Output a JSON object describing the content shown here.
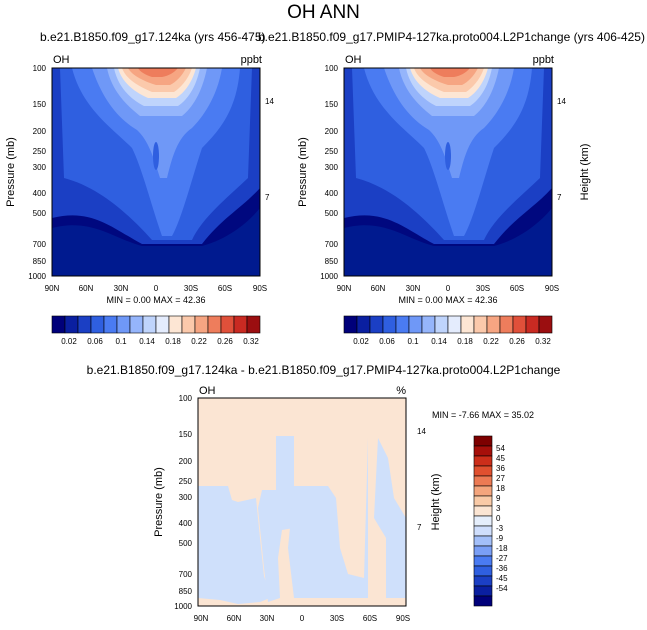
{
  "figure": {
    "title": "OH ANN"
  },
  "colors": {
    "oh_levels": [
      "#00007a",
      "#0a1fa0",
      "#1b3fc4",
      "#2f5fe0",
      "#4a7bf2",
      "#6f98f7",
      "#95b5fb",
      "#bfd4fc",
      "#e4ecfd",
      "#fde6d4",
      "#fbc9ab",
      "#f6a582",
      "#ee7d5c",
      "#e0503a",
      "#c92a22",
      "#9b0e10"
    ],
    "diff_levels": [
      "#00007a",
      "#0a1fa0",
      "#1b3fc4",
      "#2f5fe0",
      "#4a7bf2",
      "#7a9ff6",
      "#a3bff9",
      "#cfdefc",
      "#e5eefb",
      "#fbe5d3",
      "#f9caa7",
      "#f4a57d",
      "#ec7a54",
      "#e0502f",
      "#cc2e1a",
      "#a60f0a",
      "#7d0000"
    ]
  },
  "chart_data": [
    {
      "type": "contour",
      "title": "b.e21.B1850.f09_g17.124ka (yrs 456-475)",
      "left_label": "OH",
      "right_label": "ppbt",
      "xlabel": "",
      "ylabel": "Pressure (mb)",
      "y2label": "",
      "x_ticks": [
        "90N",
        "60N",
        "30N",
        "0",
        "30S",
        "60S",
        "90S"
      ],
      "y_ticks": [
        "100",
        "150",
        "200",
        "250",
        "300",
        "400",
        "500",
        "700",
        "850",
        "1000"
      ],
      "y2_ticks": [
        "14",
        "7"
      ],
      "ylim": [
        1000,
        100
      ],
      "min_text": "MIN =  0.00  MAX = 42.36",
      "colorbar_labels": [
        "0.02",
        "0.06",
        "0.1",
        "0.14",
        "0.18",
        "0.22",
        "0.26",
        "0.32"
      ]
    },
    {
      "type": "contour",
      "title": "b.e21.B1850.f09_g17.PMIP4-127ka.proto004.L2P1change (yrs 406-425)",
      "left_label": "OH",
      "right_label": "ppbt",
      "xlabel": "",
      "ylabel": "Pressure (mb)",
      "y2label": "Height (km)",
      "x_ticks": [
        "90N",
        "60N",
        "30N",
        "0",
        "30S",
        "60S",
        "90S"
      ],
      "y_ticks": [
        "100",
        "150",
        "200",
        "250",
        "300",
        "400",
        "500",
        "700",
        "850",
        "1000"
      ],
      "y2_ticks": [
        "14",
        "7"
      ],
      "ylim": [
        1000,
        100
      ],
      "min_text": "MIN =  0.00  MAX = 42.36",
      "colorbar_labels": [
        "0.02",
        "0.06",
        "0.1",
        "0.14",
        "0.18",
        "0.22",
        "0.26",
        "0.32"
      ]
    },
    {
      "type": "contour",
      "title": "b.e21.B1850.f09_g17.124ka - b.e21.B1850.f09_g17.PMIP4-127ka.proto004.L2P1change",
      "left_label": "OH",
      "right_label": "%",
      "xlabel": "",
      "ylabel": "Pressure (mb)",
      "y2label": "Height (km)",
      "x_ticks": [
        "90N",
        "60N",
        "30N",
        "0",
        "30S",
        "60S",
        "90S"
      ],
      "y_ticks": [
        "100",
        "150",
        "200",
        "250",
        "300",
        "400",
        "500",
        "700",
        "850",
        "1000"
      ],
      "y2_ticks": [
        "14",
        "7"
      ],
      "ylim": [
        1000,
        100
      ],
      "min_text": "MIN = -7.66  MAX = 35.02",
      "colorbar_labels": [
        "54",
        "45",
        "36",
        "27",
        "18",
        "9",
        "3",
        "0",
        "-3",
        "-9",
        "-18",
        "-27",
        "-36",
        "-45",
        "-54"
      ]
    }
  ]
}
